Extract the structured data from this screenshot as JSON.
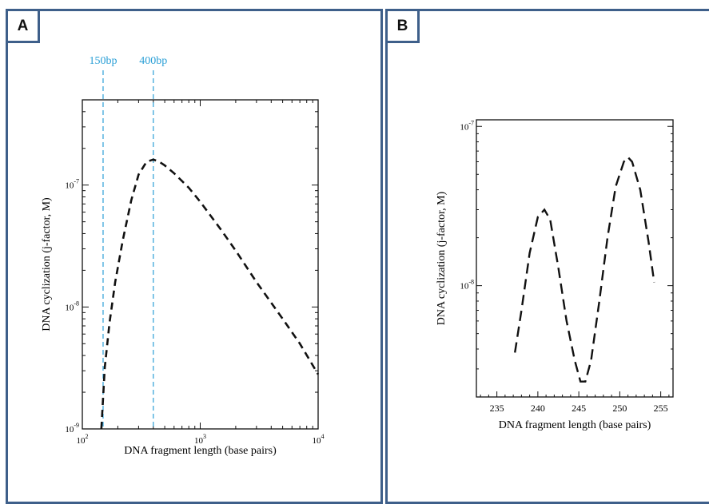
{
  "panels": [
    {
      "label": "A"
    },
    {
      "label": "B"
    }
  ],
  "colors": {
    "border": "#3e5f8a",
    "annotation": "#2a9fd6",
    "curve": "#111111"
  },
  "chart_data": [
    {
      "type": "line",
      "xscale": "log",
      "yscale": "log",
      "xlim": [
        100,
        10000
      ],
      "ylim": [
        1e-09,
        5e-07
      ],
      "xlabel": "DNA fragment length (base pairs)",
      "ylabel": "DNA cyclization (j-factor, M)",
      "xticks": [
        {
          "v": 100,
          "m": "10",
          "e": "2"
        },
        {
          "v": 1000,
          "m": "10",
          "e": "3"
        },
        {
          "v": 10000,
          "m": "10",
          "e": "4"
        }
      ],
      "yticks": [
        {
          "v": 1e-09,
          "m": "10",
          "e": "-9"
        },
        {
          "v": 1e-08,
          "m": "10",
          "e": "-8"
        },
        {
          "v": 1e-07,
          "m": "10",
          "e": "-7"
        }
      ],
      "annotations": [
        {
          "x": 150,
          "label": "150bp"
        },
        {
          "x": 400,
          "label": "400bp"
        }
      ],
      "series": [
        {
          "x": [
            145,
            155,
            170,
            190,
            220,
            260,
            300,
            350,
            400,
            450,
            500,
            600,
            800,
            1000,
            1500,
            2000,
            3000,
            5000,
            7000,
            10000
          ],
          "y": [
            1e-09,
            3.2e-09,
            7.4e-09,
            1.6e-08,
            3.5e-08,
            7.5e-08,
            1.22e-07,
            1.55e-07,
            1.62e-07,
            1.55e-07,
            1.45e-07,
            1.25e-07,
            9.5e-08,
            7.3e-08,
            4.3e-08,
            2.9e-08,
            1.6e-08,
            8e-09,
            5e-09,
            2.8e-09
          ]
        }
      ]
    },
    {
      "type": "line",
      "yscale": "log",
      "xlim": [
        232.5,
        256.5
      ],
      "ylim": [
        2e-09,
        1.1e-07
      ],
      "xlabel": "DNA fragment length (base pairs)",
      "ylabel": "DNA cyclization (j-factor, M)",
      "xticks": [
        235,
        240,
        245,
        250,
        255
      ],
      "yticks": [
        {
          "v": 1e-08,
          "m": "10",
          "e": "-8"
        },
        {
          "v": 1e-07,
          "m": "10",
          "e": "-7"
        }
      ],
      "series": [
        {
          "x": [
            237.2,
            238,
            239,
            240,
            240.8,
            241.5,
            242.5,
            243.5,
            244.5,
            245.2,
            245.8,
            246.5,
            247.5,
            248.5,
            249.5,
            250.5,
            251,
            251.5,
            252.5,
            253.5,
            254.2
          ],
          "y": [
            3.8e-09,
            7e-09,
            1.6e-08,
            2.7e-08,
            3e-08,
            2.6e-08,
            1.3e-08,
            6e-09,
            3.4e-09,
            2.5e-09,
            2.5e-09,
            3.4e-09,
            8e-09,
            2e-08,
            4.2e-08,
            6e-08,
            6.4e-08,
            6e-08,
            4e-08,
            1.9e-08,
            1.05e-08
          ]
        }
      ]
    }
  ]
}
